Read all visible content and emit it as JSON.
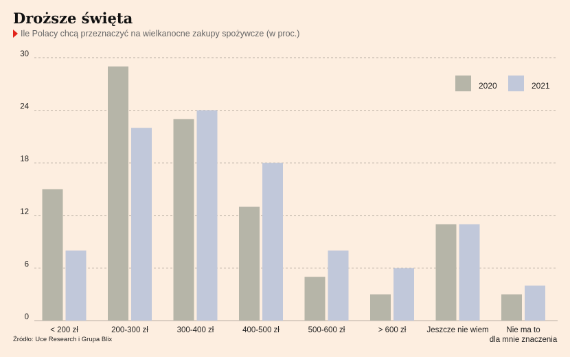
{
  "header": {
    "title": "Droższe święta",
    "subtitle": "Ile Polacy chcą przeznaczyć na wielkanocne zakupy spożywcze (w proc.)"
  },
  "footer": {
    "source": "Źródło: Uce Research i Grupa Blix"
  },
  "colors": {
    "background": "#fdeee0",
    "series_2020": "#b6b5a8",
    "series_2021": "#c1c8da",
    "gridline": "#b9aea3",
    "marker": "#e2231a"
  },
  "chart_data": {
    "type": "bar",
    "title": "Droższe święta",
    "subtitle": "Ile Polacy chcą przeznaczyć na wielkanocne zakupy spożywcze (w proc.)",
    "categories": [
      [
        "< 200 zł"
      ],
      [
        "200-300 zł"
      ],
      [
        "300-400 zł"
      ],
      [
        "400-500 zł"
      ],
      [
        "500-600 zł"
      ],
      [
        "> 600 zł"
      ],
      [
        "Jeszcze nie wiem"
      ],
      [
        "Nie ma to",
        "dla mnie znaczenia"
      ]
    ],
    "series": [
      {
        "name": "2020",
        "values": [
          15,
          29,
          23,
          13,
          5,
          3,
          11,
          3
        ]
      },
      {
        "name": "2021",
        "values": [
          8,
          22,
          24,
          18,
          8,
          6,
          11,
          4
        ]
      }
    ],
    "ylim": [
      0,
      30
    ],
    "yticks": [
      0,
      6,
      12,
      18,
      24,
      30
    ],
    "grid": "horizontal-dashed",
    "legend_position": "top-right"
  }
}
